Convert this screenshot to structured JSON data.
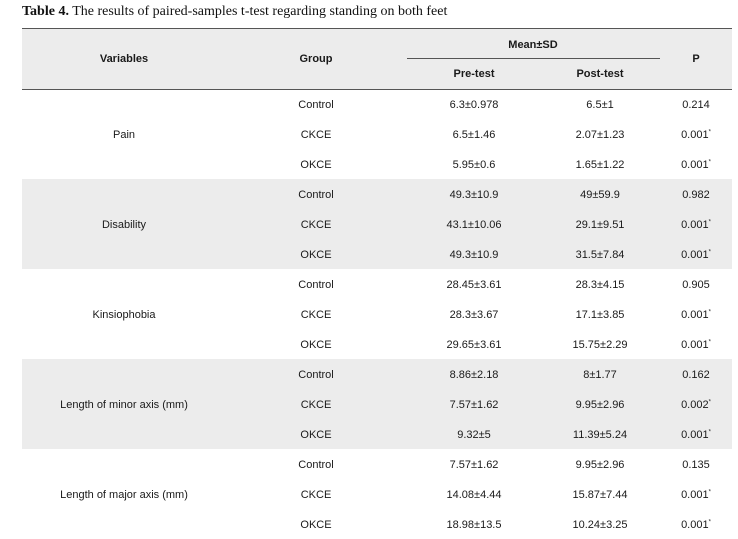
{
  "caption": {
    "label": "Table 4.",
    "text": " The results of paired-samples t-test regarding standing on both feet"
  },
  "headers": {
    "variables": "Variables",
    "group": "Group",
    "mean_sd": "Mean±SD",
    "pre_test": "Pre-test",
    "post_test": "Post-test",
    "p": "P"
  },
  "rows": [
    {
      "variable": "Pain",
      "groups": [
        {
          "group": "Control",
          "pre": "6.3±0.978",
          "post": "6.5±1",
          "p": "0.214",
          "sig": ""
        },
        {
          "group": "CKCE",
          "pre": "6.5±1.46",
          "post": "2.07±1.23",
          "p": "0.001",
          "sig": "*"
        },
        {
          "group": "OKCE",
          "pre": "5.95±0.6",
          "post": "1.65±1.22",
          "p": "0.001",
          "sig": "*"
        }
      ]
    },
    {
      "variable": "Disability",
      "groups": [
        {
          "group": "Control",
          "pre": "49.3±10.9",
          "post": "49±59.9",
          "p": "0.982",
          "sig": ""
        },
        {
          "group": "CKCE",
          "pre": "43.1±10.06",
          "post": "29.1±9.51",
          "p": "0.001",
          "sig": "*"
        },
        {
          "group": "OKCE",
          "pre": "49.3±10.9",
          "post": "31.5±7.84",
          "p": "0.001",
          "sig": "*"
        }
      ]
    },
    {
      "variable": "Kinsiophobia",
      "groups": [
        {
          "group": "Control",
          "pre": "28.45±3.61",
          "post": "28.3±4.15",
          "p": "0.905",
          "sig": ""
        },
        {
          "group": "CKCE",
          "pre": "28.3±3.67",
          "post": "17.1±3.85",
          "p": "0.001",
          "sig": "*"
        },
        {
          "group": "OKCE",
          "pre": "29.65±3.61",
          "post": "15.75±2.29",
          "p": "0.001",
          "sig": "*"
        }
      ]
    },
    {
      "variable": "Length of minor axis (mm)",
      "groups": [
        {
          "group": "Control",
          "pre": "8.86±2.18",
          "post": "8±1.77",
          "p": "0.162",
          "sig": ""
        },
        {
          "group": "CKCE",
          "pre": "7.57±1.62",
          "post": "9.95±2.96",
          "p": "0.002",
          "sig": "*"
        },
        {
          "group": "OKCE",
          "pre": "9.32±5",
          "post": "11.39±5.24",
          "p": "0.001",
          "sig": "*"
        }
      ]
    },
    {
      "variable": "Length of major axis (mm)",
      "groups": [
        {
          "group": "Control",
          "pre": "7.57±1.62",
          "post": "9.95±2.96",
          "p": "0.135",
          "sig": ""
        },
        {
          "group": "CKCE",
          "pre": "14.08±4.44",
          "post": "15.87±7.44",
          "p": "0.001",
          "sig": "*"
        },
        {
          "group": "OKCE",
          "pre": "18.98±13.5",
          "post": "10.24±3.25",
          "p": "0.001",
          "sig": "*"
        }
      ]
    }
  ]
}
